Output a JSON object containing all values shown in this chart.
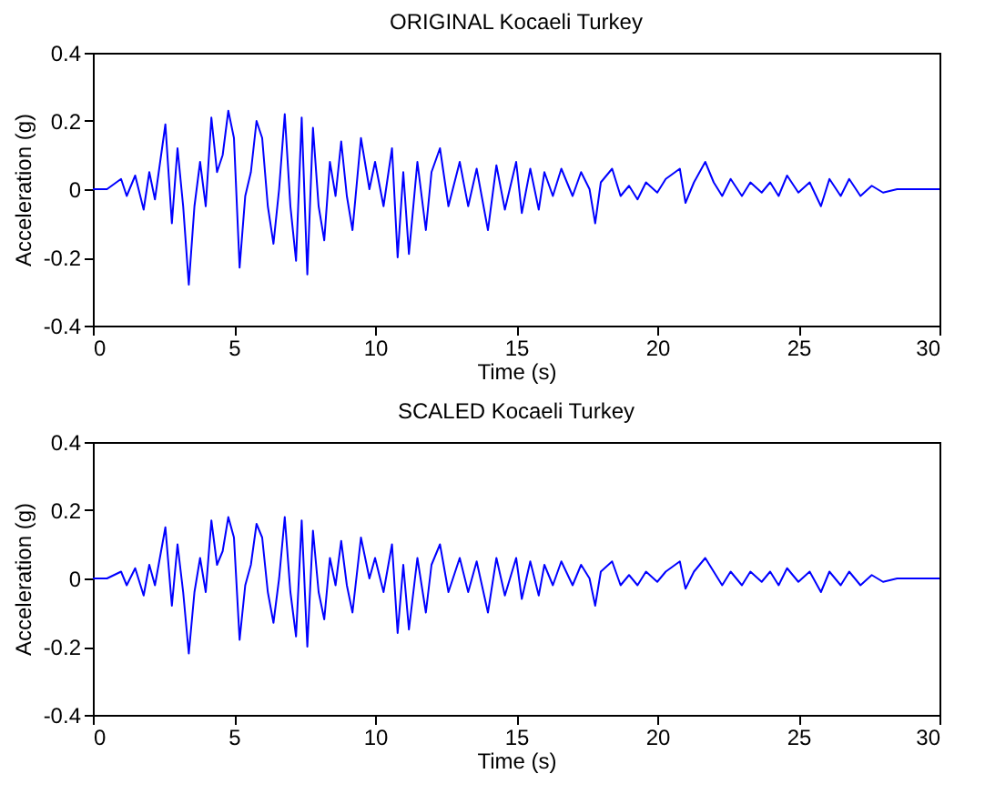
{
  "chart_data": [
    {
      "type": "line",
      "title": "ORIGINAL Kocaeli Turkey",
      "xlabel": "Time (s)",
      "ylabel": "Acceleration (g)",
      "xlim": [
        0,
        30
      ],
      "xticks": [
        0,
        5,
        10,
        15,
        20,
        25,
        30
      ],
      "ylim": [
        -0.4,
        0.4
      ],
      "yticks": [
        -0.4,
        -0.2,
        0,
        0.2,
        0.4
      ],
      "grid": false,
      "line_style": "solid",
      "x": [
        0,
        0.5,
        1.0,
        1.2,
        1.5,
        1.8,
        2.0,
        2.2,
        2.57,
        2.8,
        3.0,
        3.2,
        3.4,
        3.6,
        3.8,
        4.0,
        4.2,
        4.4,
        4.6,
        4.8,
        5.0,
        5.2,
        5.4,
        5.6,
        5.8,
        6.0,
        6.2,
        6.4,
        6.6,
        6.8,
        7.0,
        7.2,
        7.4,
        7.6,
        7.8,
        8.0,
        8.2,
        8.4,
        8.6,
        8.8,
        9.0,
        9.2,
        9.5,
        9.8,
        10.0,
        10.3,
        10.6,
        10.8,
        11.0,
        11.2,
        11.5,
        11.8,
        12.0,
        12.3,
        12.6,
        13.0,
        13.3,
        13.6,
        14.0,
        14.3,
        14.6,
        15.0,
        15.2,
        15.5,
        15.8,
        16.0,
        16.3,
        16.6,
        17.0,
        17.3,
        17.6,
        17.8,
        18.0,
        18.4,
        18.7,
        19.0,
        19.3,
        19.6,
        20.0,
        20.3,
        20.8,
        21.0,
        21.3,
        21.7,
        22.0,
        22.3,
        22.6,
        23.0,
        23.3,
        23.7,
        24.0,
        24.3,
        24.6,
        25.0,
        25.4,
        25.8,
        26.1,
        26.5,
        26.8,
        27.2,
        27.6,
        28.0,
        28.5,
        29.0,
        30.0
      ],
      "series": [
        {
          "color": "#0000ff",
          "values": [
            0,
            0,
            0.03,
            -0.02,
            0.04,
            -0.06,
            0.05,
            -0.03,
            0.19,
            -0.1,
            0.12,
            -0.05,
            -0.28,
            -0.05,
            0.08,
            -0.05,
            0.21,
            0.05,
            0.1,
            0.23,
            0.15,
            -0.23,
            -0.02,
            0.05,
            0.2,
            0.15,
            -0.05,
            -0.16,
            0,
            0.22,
            -0.05,
            -0.21,
            0.21,
            -0.25,
            0.18,
            -0.05,
            -0.15,
            0.08,
            -0.02,
            0.14,
            -0.02,
            -0.12,
            0.15,
            0,
            0.08,
            -0.05,
            0.12,
            -0.2,
            0.05,
            -0.19,
            0.08,
            -0.12,
            0.05,
            0.12,
            -0.05,
            0.08,
            -0.05,
            0.06,
            -0.12,
            0.07,
            -0.06,
            0.08,
            -0.07,
            0.06,
            -0.06,
            0.05,
            -0.02,
            0.06,
            -0.02,
            0.05,
            0,
            -0.1,
            0.02,
            0.06,
            -0.02,
            0.01,
            -0.03,
            0.02,
            -0.01,
            0.03,
            0.06,
            -0.04,
            0.02,
            0.08,
            0.02,
            -0.02,
            0.03,
            -0.02,
            0.02,
            -0.01,
            0.02,
            -0.02,
            0.04,
            -0.01,
            0.02,
            -0.05,
            0.03,
            -0.02,
            0.03,
            -0.02,
            0.01,
            -0.01,
            0,
            0,
            0
          ]
        }
      ]
    },
    {
      "type": "line",
      "title": "SCALED Kocaeli Turkey",
      "xlabel": "Time (s)",
      "ylabel": "Acceleration (g)",
      "xlim": [
        0,
        30
      ],
      "xticks": [
        0,
        5,
        10,
        15,
        20,
        25,
        30
      ],
      "ylim": [
        -0.4,
        0.4
      ],
      "yticks": [
        -0.4,
        -0.2,
        0,
        0.2,
        0.4
      ],
      "grid": false,
      "line_style": "solid",
      "x": [
        0,
        0.5,
        1.0,
        1.2,
        1.5,
        1.8,
        2.0,
        2.2,
        2.57,
        2.8,
        3.0,
        3.2,
        3.4,
        3.6,
        3.8,
        4.0,
        4.2,
        4.4,
        4.6,
        4.8,
        5.0,
        5.2,
        5.4,
        5.6,
        5.8,
        6.0,
        6.2,
        6.4,
        6.6,
        6.8,
        7.0,
        7.2,
        7.4,
        7.6,
        7.8,
        8.0,
        8.2,
        8.4,
        8.6,
        8.8,
        9.0,
        9.2,
        9.5,
        9.8,
        10.0,
        10.3,
        10.6,
        10.8,
        11.0,
        11.2,
        11.5,
        11.8,
        12.0,
        12.3,
        12.6,
        13.0,
        13.3,
        13.6,
        14.0,
        14.3,
        14.6,
        15.0,
        15.2,
        15.5,
        15.8,
        16.0,
        16.3,
        16.6,
        17.0,
        17.3,
        17.6,
        17.8,
        18.0,
        18.4,
        18.7,
        19.0,
        19.3,
        19.6,
        20.0,
        20.3,
        20.8,
        21.0,
        21.3,
        21.7,
        22.0,
        22.3,
        22.6,
        23.0,
        23.3,
        23.7,
        24.0,
        24.3,
        24.6,
        25.0,
        25.4,
        25.8,
        26.1,
        26.5,
        26.8,
        27.2,
        27.6,
        28.0,
        28.5,
        29.0,
        30.0
      ],
      "series": [
        {
          "color": "#0000ff",
          "values": [
            0,
            0,
            0.02,
            -0.02,
            0.03,
            -0.05,
            0.04,
            -0.02,
            0.15,
            -0.08,
            0.1,
            -0.04,
            -0.22,
            -0.04,
            0.06,
            -0.04,
            0.17,
            0.04,
            0.08,
            0.18,
            0.12,
            -0.18,
            -0.02,
            0.04,
            0.16,
            0.12,
            -0.04,
            -0.13,
            0,
            0.18,
            -0.04,
            -0.17,
            0.17,
            -0.2,
            0.14,
            -0.04,
            -0.12,
            0.06,
            -0.02,
            0.11,
            -0.02,
            -0.1,
            0.12,
            0,
            0.06,
            -0.04,
            0.1,
            -0.16,
            0.04,
            -0.15,
            0.06,
            -0.1,
            0.04,
            0.1,
            -0.04,
            0.06,
            -0.04,
            0.05,
            -0.1,
            0.06,
            -0.05,
            0.06,
            -0.06,
            0.05,
            -0.05,
            0.04,
            -0.02,
            0.05,
            -0.02,
            0.04,
            0,
            -0.08,
            0.02,
            0.05,
            -0.02,
            0.01,
            -0.02,
            0.02,
            -0.01,
            0.02,
            0.05,
            -0.03,
            0.02,
            0.06,
            0.02,
            -0.02,
            0.02,
            -0.02,
            0.02,
            -0.01,
            0.02,
            -0.02,
            0.03,
            -0.01,
            0.02,
            -0.04,
            0.02,
            -0.02,
            0.02,
            -0.02,
            0.01,
            -0.01,
            0,
            0,
            0
          ]
        }
      ]
    }
  ]
}
